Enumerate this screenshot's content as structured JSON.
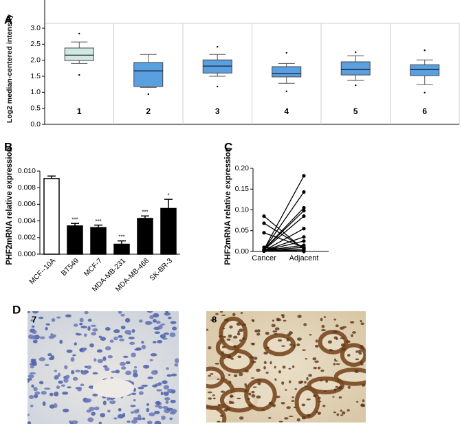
{
  "panel_labels": [
    "A",
    "B",
    "C",
    "D"
  ],
  "chart_data": [
    {
      "type": "box",
      "ylabel": "Log2 median-centered intensity",
      "categories": [
        "1",
        "2",
        "3",
        "4",
        "5",
        "6"
      ],
      "colors": [
        "#cfe8e2",
        "#5a9fe0",
        "#5a9fe0",
        "#5a9fe0",
        "#5a9fe0",
        "#5a9fe0"
      ],
      "boxes": [
        {
          "whislo": 1.9,
          "q1": 1.99,
          "med": 2.16,
          "q3": 2.38,
          "whishi": 2.57,
          "outliers": [
            2.83,
            1.54
          ]
        },
        {
          "whislo": 1.15,
          "q1": 1.18,
          "med": 1.67,
          "q3": 1.93,
          "whishi": 2.18,
          "outliers": [
            0.94
          ]
        },
        {
          "whislo": 1.5,
          "q1": 1.6,
          "med": 1.82,
          "q3": 2.01,
          "whishi": 2.18,
          "outliers": [
            2.42,
            1.18
          ]
        },
        {
          "whislo": 1.28,
          "q1": 1.48,
          "med": 1.58,
          "q3": 1.8,
          "whishi": 1.9,
          "outliers": [
            2.23,
            1.03
          ]
        },
        {
          "whislo": 1.37,
          "q1": 1.54,
          "med": 1.71,
          "q3": 1.95,
          "whishi": 2.14,
          "outliers": [
            2.25,
            1.22
          ]
        },
        {
          "whislo": 1.24,
          "q1": 1.52,
          "med": 1.71,
          "q3": 1.86,
          "whishi": 2.01,
          "outliers": [
            2.31,
            0.99
          ]
        }
      ],
      "ylim": [
        0,
        3
      ],
      "yticks": [
        {
          "value": 0,
          "label": "0.0"
        },
        0.5,
        {
          "value": 1,
          "label": "1.0"
        },
        1.5,
        {
          "value": 2,
          "label": "2.0"
        },
        2.5,
        {
          "value": 3,
          "label": "3.0"
        }
      ],
      "dividers": true
    },
    {
      "type": "bar",
      "ylabel": "PHF2mRNA relative expression",
      "categories": [
        "MCF--10A",
        "BT549",
        "MCF-7",
        "MDA-MB-231",
        "MDA-MB-468",
        "SK-BR-3"
      ],
      "values": [
        0.0091,
        0.0034,
        0.0032,
        0.0012,
        0.0043,
        0.0055
      ],
      "errors": [
        0.0003,
        0.0003,
        0.0003,
        0.0004,
        0.0003,
        0.0011
      ],
      "annotations": [
        null,
        "***",
        "***",
        "***",
        "***",
        "*"
      ],
      "colors": [
        "#ffffff",
        "#000000",
        "#000000",
        "#000000",
        "#000000",
        "#000000"
      ],
      "ylim": [
        0,
        0.01
      ],
      "yticks": [
        {
          "value": 0,
          "label": "0.000"
        },
        {
          "value": 0.002,
          "label": "0.002"
        },
        {
          "value": 0.004,
          "label": "0.004"
        },
        {
          "value": 0.006,
          "label": "0.006"
        },
        {
          "value": 0.008,
          "label": "0.008"
        },
        {
          "value": 0.01,
          "label": "0.010"
        }
      ]
    },
    {
      "type": "paired",
      "ylabel": "PHF2mRNA relative expression",
      "categories": [
        "Cancer",
        "Adjacent"
      ],
      "color": "#000000",
      "series": [
        {
          "values": [
            0.085,
            0.005
          ]
        },
        {
          "values": [
            0.068,
            0.008
          ]
        },
        {
          "values": [
            0.045,
            0.01
          ]
        },
        {
          "values": [
            0.005,
            0.182
          ]
        },
        {
          "values": [
            0.005,
            0.143
          ]
        },
        {
          "values": [
            0.005,
            0.105
          ]
        },
        {
          "values": [
            0.005,
            0.098
          ]
        },
        {
          "values": [
            0.004,
            0.085
          ]
        },
        {
          "values": [
            0.002,
            0.055
          ]
        },
        {
          "values": [
            0.002,
            0.035
          ]
        },
        {
          "values": [
            0.002,
            0.025
          ]
        },
        {
          "values": [
            0.002,
            0.015
          ]
        },
        {
          "values": [
            0.002,
            0.01
          ]
        },
        {
          "values": [
            0.001,
            0.005
          ]
        },
        {
          "values": [
            0.001,
            0.002
          ]
        },
        {
          "values": [
            0.01,
            0.0
          ]
        }
      ],
      "ylim": [
        0,
        0.2
      ],
      "yticks": [
        {
          "value": 0,
          "label": "0.00"
        },
        {
          "value": 0.05,
          "label": "0.05"
        },
        {
          "value": 0.1,
          "label": "0.10"
        },
        {
          "value": 0.15,
          "label": "0.15"
        },
        {
          "value": 0.2,
          "label": "0.20"
        }
      ]
    }
  ],
  "images": [
    {
      "label": "7"
    },
    {
      "label": "8"
    }
  ]
}
